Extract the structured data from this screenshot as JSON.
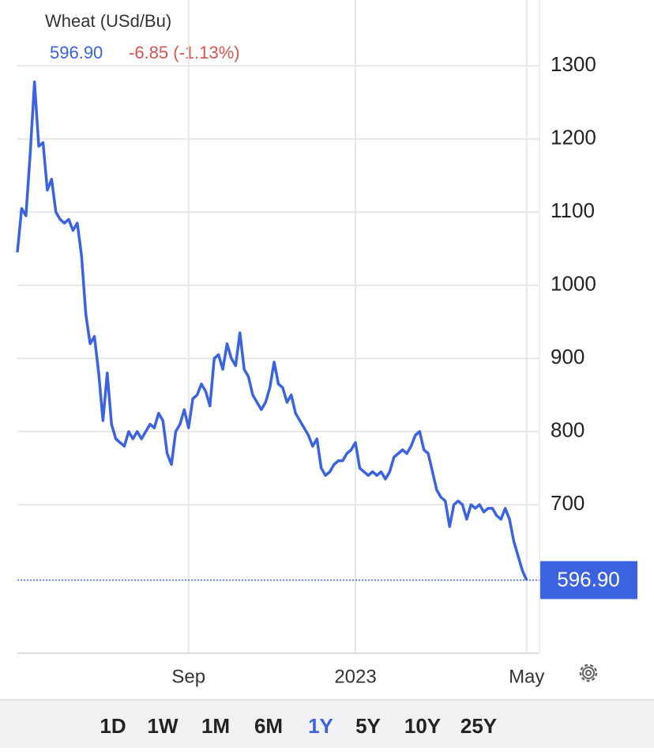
{
  "chart_data": {
    "type": "line",
    "title": "Wheat (USd/Bu)",
    "last": {
      "value": 596.9,
      "label": "596.90"
    },
    "change": "-6.85 (-1.13%)",
    "series": [
      {
        "name": "Wheat",
        "color": "#3b63e0",
        "values": [
          1045,
          1105,
          1095,
          1180,
          1278,
          1190,
          1195,
          1130,
          1145,
          1100,
          1090,
          1085,
          1090,
          1075,
          1085,
          1040,
          960,
          920,
          930,
          880,
          815,
          880,
          810,
          790,
          785,
          780,
          800,
          790,
          800,
          790,
          800,
          810,
          805,
          825,
          815,
          770,
          755,
          800,
          810,
          830,
          805,
          845,
          850,
          865,
          855,
          835,
          900,
          905,
          885,
          920,
          900,
          890,
          935,
          885,
          875,
          850,
          840,
          830,
          840,
          860,
          895,
          865,
          860,
          840,
          850,
          825,
          815,
          805,
          795,
          780,
          790,
          750,
          740,
          745,
          755,
          760,
          760,
          770,
          775,
          785,
          750,
          745,
          740,
          745,
          740,
          745,
          735,
          745,
          765,
          770,
          775,
          770,
          780,
          795,
          800,
          775,
          770,
          745,
          720,
          710,
          705,
          670,
          700,
          705,
          700,
          680,
          700,
          695,
          700,
          690,
          695,
          695,
          685,
          680,
          695,
          680,
          650,
          630,
          610,
          596.9
        ]
      }
    ],
    "xlim": [
      0,
      122
    ],
    "xticks": [
      {
        "value": 40,
        "label": "Sep"
      },
      {
        "value": 79,
        "label": "2023"
      },
      {
        "value": 119,
        "label": "May"
      }
    ],
    "ylim": [
      497,
      1390
    ],
    "yticks": [
      700,
      800,
      900,
      1000,
      1100,
      1200,
      1300
    ],
    "grid": true,
    "ranges": [
      "1D",
      "1W",
      "1M",
      "6M",
      "1Y",
      "5Y",
      "10Y",
      "25Y"
    ],
    "selected_range": "1Y"
  }
}
